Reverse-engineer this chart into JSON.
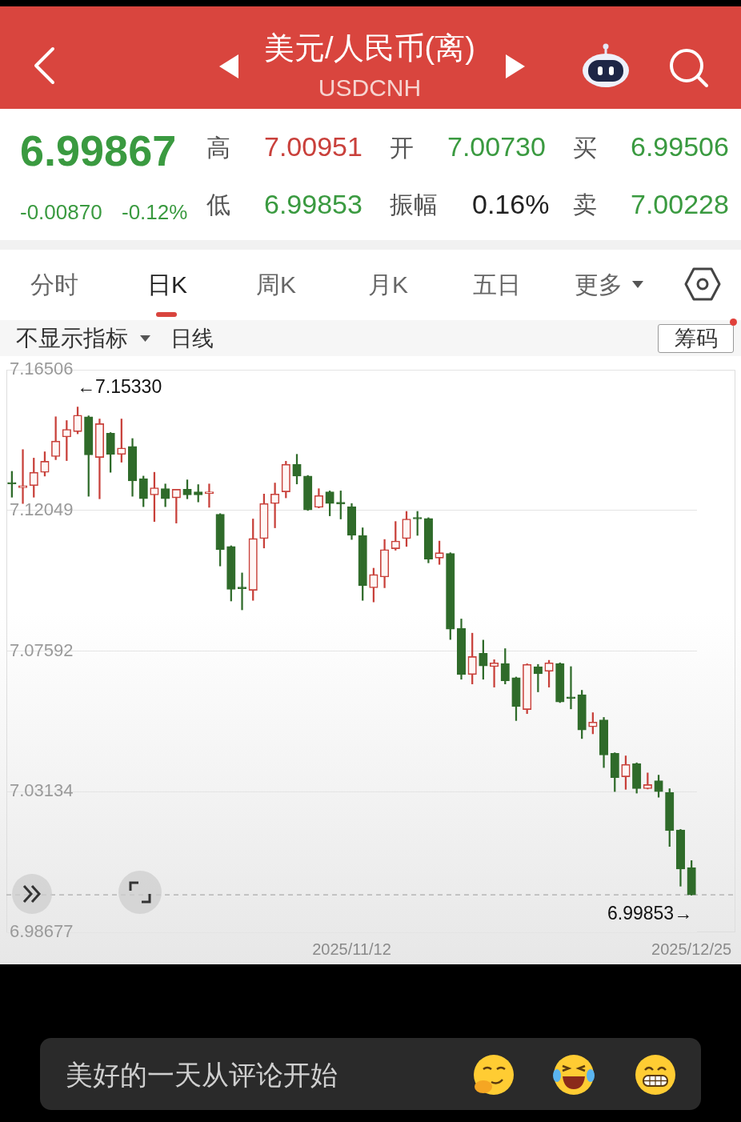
{
  "chart_data": {
    "type": "candlestick",
    "title": "美元/人民币(离)",
    "subtitle": "USDCNH",
    "categories": [
      null,
      null,
      null,
      null,
      null,
      null,
      null,
      null,
      null,
      null,
      null,
      null,
      null,
      null,
      null,
      null,
      null,
      null,
      null,
      null,
      null,
      null,
      null,
      null,
      null,
      null,
      null,
      null,
      null,
      null,
      null,
      "2025/11/12",
      null,
      null,
      null,
      null,
      null,
      null,
      null,
      null,
      null,
      null,
      null,
      null,
      null,
      null,
      null,
      null,
      null,
      null,
      null,
      null,
      null,
      null,
      null,
      null,
      null,
      null,
      null,
      null,
      null,
      null,
      "2025/12/25"
    ],
    "ohlc": [
      [
        7.1292,
        7.1329,
        7.1247,
        7.1289
      ],
      [
        7.1277,
        7.1398,
        7.1227,
        7.1284
      ],
      [
        7.1284,
        7.1371,
        7.1247,
        7.1326
      ],
      [
        7.1326,
        7.1391,
        7.1314,
        7.1361
      ],
      [
        7.1376,
        7.1502,
        7.1366,
        7.1425
      ],
      [
        7.1438,
        7.149,
        7.1363,
        7.1462
      ],
      [
        7.1455,
        7.1533,
        7.1448,
        7.1507
      ],
      [
        7.1502,
        7.1505,
        7.125,
        7.1381
      ],
      [
        7.1373,
        7.1495,
        7.1242,
        7.148
      ],
      [
        7.145,
        7.1452,
        7.1326,
        7.1383
      ],
      [
        7.1383,
        7.1495,
        7.1358,
        7.1403
      ],
      [
        7.1408,
        7.1433,
        7.125,
        7.1299
      ],
      [
        7.1306,
        7.1314,
        7.1217,
        7.1242
      ],
      [
        7.1254,
        7.1326,
        7.117,
        7.1277
      ],
      [
        7.1274,
        7.1289,
        7.1217,
        7.1242
      ],
      [
        7.1245,
        7.1272,
        7.1165,
        7.1272
      ],
      [
        7.1272,
        7.1302,
        7.1242,
        7.1254
      ],
      [
        7.1264,
        7.1287,
        7.1232,
        7.1254
      ],
      [
        7.1259,
        7.1289,
        7.1215,
        7.1264
      ],
      [
        7.1193,
        7.1195,
        7.1029,
        7.1081
      ],
      [
        7.1091,
        7.1093,
        7.0918,
        7.0955
      ],
      [
        7.096,
        7.1007,
        7.089,
        7.0957
      ],
      [
        7.0952,
        7.1178,
        7.092,
        7.1116
      ],
      [
        7.1116,
        7.1257,
        7.1086,
        7.1227
      ],
      [
        7.1227,
        7.1292,
        7.115,
        7.1257
      ],
      [
        7.1264,
        7.1361,
        7.1245,
        7.1351
      ],
      [
        7.1351,
        7.1383,
        7.1289,
        7.1314
      ],
      [
        7.1314,
        7.1316,
        7.1205,
        7.1207
      ],
      [
        7.1215,
        7.1274,
        7.1213,
        7.1252
      ],
      [
        7.1264,
        7.1267,
        7.1188,
        7.1227
      ],
      [
        7.1228,
        7.1267,
        7.1178,
        7.1226
      ],
      [
        7.1217,
        7.1227,
        7.1113,
        7.1126
      ],
      [
        7.1126,
        7.115,
        7.092,
        7.0967
      ],
      [
        7.096,
        7.1022,
        7.0915,
        7.1002
      ],
      [
        7.0994,
        7.1113,
        7.096,
        7.1081
      ],
      [
        7.1084,
        7.117,
        7.1079,
        7.1108
      ],
      [
        7.1116,
        7.1202,
        7.1091,
        7.1178
      ],
      [
        7.118,
        7.1202,
        7.1126,
        7.1178
      ],
      [
        7.118,
        7.1182,
        7.1039,
        7.1051
      ],
      [
        7.1054,
        7.1108,
        7.1034,
        7.1071
      ],
      [
        7.1069,
        7.1071,
        7.0796,
        7.0829
      ],
      [
        7.0831,
        7.0861,
        7.067,
        7.0685
      ],
      [
        7.0685,
        7.0816,
        7.0655,
        7.0742
      ],
      [
        7.0752,
        7.0794,
        7.067,
        7.0712
      ],
      [
        7.071,
        7.0732,
        7.0645,
        7.0722
      ],
      [
        7.072,
        7.0767,
        7.0655,
        7.0665
      ],
      [
        7.0675,
        7.0677,
        7.0539,
        7.0583
      ],
      [
        7.0574,
        7.0719,
        7.0561,
        7.0717
      ],
      [
        7.071,
        7.0717,
        7.063,
        7.0687
      ],
      [
        7.0695,
        7.073,
        7.0645,
        7.0722
      ],
      [
        7.072,
        7.0722,
        7.0596,
        7.0598
      ],
      [
        7.0611,
        7.071,
        7.0576,
        7.0609
      ],
      [
        7.0621,
        7.0635,
        7.0482,
        7.0509
      ],
      [
        7.0519,
        7.0564,
        7.0497,
        7.0534
      ],
      [
        7.0541,
        7.0549,
        7.039,
        7.043
      ],
      [
        7.0435,
        7.0437,
        7.0314,
        7.0358
      ],
      [
        7.0361,
        7.0427,
        7.0321,
        7.04
      ],
      [
        7.0403,
        7.0405,
        7.0309,
        7.0323
      ],
      [
        7.0323,
        7.0373,
        7.0322,
        7.0336
      ],
      [
        7.0348,
        7.0366,
        7.0296,
        7.0314
      ],
      [
        7.0311,
        7.0323,
        7.014,
        7.019
      ],
      [
        7.0192,
        7.0194,
        7.0014,
        7.0068
      ],
      [
        7.0073,
        7.00951,
        6.99853,
        6.99867
      ]
    ],
    "colors": [
      "#2f6b2a",
      "#c8403a",
      "#c8403a",
      "#c8403a",
      "#c8403a",
      "#c8403a",
      "#c8403a",
      "#2f6b2a",
      "#c8403a",
      "#2f6b2a",
      "#c8403a",
      "#2f6b2a",
      "#2f6b2a",
      "#c8403a",
      "#2f6b2a",
      "#c8403a",
      "#2f6b2a",
      "#2f6b2a",
      "#c8403a",
      "#2f6b2a",
      "#2f6b2a",
      "#2f6b2a",
      "#c8403a",
      "#c8403a",
      "#c8403a",
      "#c8403a",
      "#2f6b2a",
      "#2f6b2a",
      "#c8403a",
      "#2f6b2a",
      "#2f6b2a",
      "#2f6b2a",
      "#2f6b2a",
      "#c8403a",
      "#c8403a",
      "#c8403a",
      "#c8403a",
      "#2f6b2a",
      "#2f6b2a",
      "#c8403a",
      "#2f6b2a",
      "#2f6b2a",
      "#c8403a",
      "#2f6b2a",
      "#c8403a",
      "#2f6b2a",
      "#2f6b2a",
      "#c8403a",
      "#2f6b2a",
      "#c8403a",
      "#2f6b2a",
      "#2f6b2a",
      "#2f6b2a",
      "#c8403a",
      "#2f6b2a",
      "#2f6b2a",
      "#c8403a",
      "#2f6b2a",
      "#c8403a",
      "#2f6b2a",
      "#2f6b2a",
      "#2f6b2a",
      "#2f6b2a"
    ],
    "ylim": [
      6.98677,
      7.16506
    ],
    "yticks": [
      7.16506,
      7.12049,
      7.07592,
      7.03134,
      6.98677
    ],
    "grid": "y",
    "ref_lines": [
      {
        "axis": "y",
        "value": 6.99867,
        "color": "#aaaaaa",
        "line_style": "dashed"
      }
    ],
    "annotations": [
      "6.99867",
      "-0.00870",
      "-0.12%",
      "高",
      "7.00951",
      "开",
      "7.00730",
      "买",
      "6.99506",
      "低",
      "6.99853",
      "振幅",
      "0.16%",
      "卖",
      "7.00228",
      "分时",
      "日K",
      "周K",
      "月K",
      "五日",
      "更多",
      "不显示指标",
      "日线",
      "筹码",
      "美好的一天从评论开始",
      "←7.15330",
      {
        "text": "6.99853→",
        "y": 6.99853
      }
    ]
  }
}
